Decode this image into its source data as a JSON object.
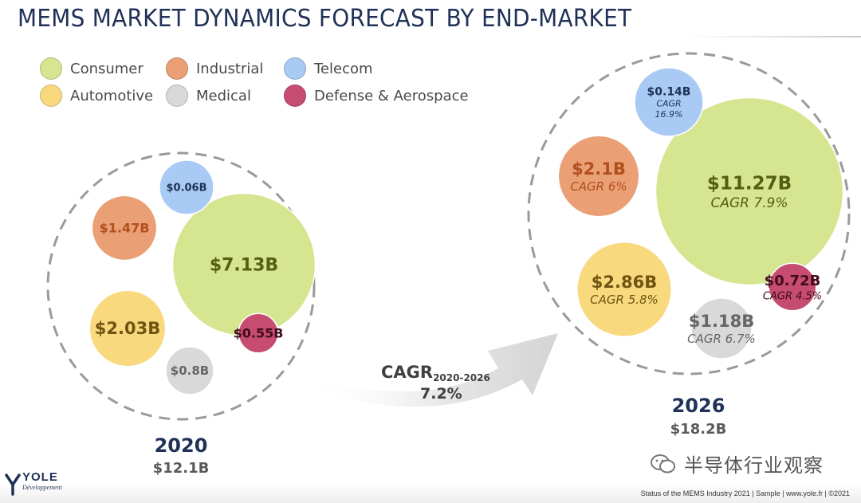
{
  "title": "MEMS MARKET DYNAMICS FORECAST BY END-MARKET",
  "legend": [
    {
      "key": "consumer",
      "label": "Consumer",
      "color": "#d6e58f"
    },
    {
      "key": "industrial",
      "label": "Industrial",
      "color": "#ea9f74"
    },
    {
      "key": "telecom",
      "label": "Telecom",
      "color": "#a9caf4"
    },
    {
      "key": "automotive",
      "label": "Automotive",
      "color": "#f8d97e"
    },
    {
      "key": "medical",
      "label": "Medical",
      "color": "#d9d9d9"
    },
    {
      "key": "defense",
      "label": "Defense & Aerospace",
      "color": "#c64c72"
    }
  ],
  "growth": {
    "cagr_label": "CAGR",
    "cagr_period": "2020-2026",
    "cagr_value": "7.2%"
  },
  "chart_data": [
    {
      "type": "bubble",
      "year": "2020",
      "total": "$12.1B",
      "series": [
        {
          "name": "Consumer",
          "value": 7.13,
          "label": "$7.13B"
        },
        {
          "name": "Automotive",
          "value": 2.03,
          "label": "$2.03B"
        },
        {
          "name": "Industrial",
          "value": 1.47,
          "label": "$1.47B"
        },
        {
          "name": "Medical",
          "value": 0.8,
          "label": "$0.8B"
        },
        {
          "name": "Defense & Aerospace",
          "value": 0.55,
          "label": "$0.55B"
        },
        {
          "name": "Telecom",
          "value": 0.06,
          "label": "$0.06B"
        }
      ]
    },
    {
      "type": "bubble",
      "year": "2026",
      "total": "$18.2B",
      "series": [
        {
          "name": "Consumer",
          "value": 11.27,
          "label": "$11.27B",
          "cagr": "CAGR 7.9%"
        },
        {
          "name": "Automotive",
          "value": 2.86,
          "label": "$2.86B",
          "cagr": "CAGR 5.8%"
        },
        {
          "name": "Industrial",
          "value": 2.1,
          "label": "$2.1B",
          "cagr": "CAGR 6%"
        },
        {
          "name": "Medical",
          "value": 1.18,
          "label": "$1.18B",
          "cagr": "CAGR 6.7%"
        },
        {
          "name": "Defense & Aerospace",
          "value": 0.72,
          "label": "$0.72B",
          "cagr": "CAGR 4.5%"
        },
        {
          "name": "Telecom",
          "value": 0.14,
          "label": "$0.14B",
          "cagr_lines": [
            "CAGR",
            "16.9%"
          ]
        }
      ]
    }
  ],
  "footer": "Status of the MEMS Industry 2021 | Sample | www.yole.fr | ©2021",
  "logo": {
    "name": "YOLE",
    "sub": "Développement"
  },
  "watermark": "半导体行业观察"
}
